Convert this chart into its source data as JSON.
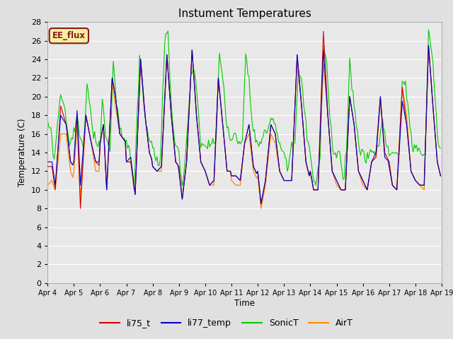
{
  "title": "Instument Temperatures",
  "ylabel": "Temperature (C)",
  "xlabel": "Time",
  "ylim": [
    0,
    28
  ],
  "fig_bg": "#e0e0e0",
  "plot_bg": "#e8e8e8",
  "grid_color": "#ffffff",
  "annotation_text": "EE_flux",
  "annotation_facecolor": "#f5f0a0",
  "annotation_edgecolor": "#8b1a1a",
  "colors": {
    "li75_t": "#dd0000",
    "li77_temp": "#0000cc",
    "SonicT": "#00cc00",
    "AirT": "#ff8800"
  },
  "legend_labels": [
    "li75_t",
    "li77_temp",
    "SonicT",
    "AirT"
  ],
  "xtick_labels": [
    "Apr 4",
    "Apr 5",
    "Apr 6",
    "Apr 7",
    "Apr 8",
    "Apr 9",
    "Apr 10",
    "Apr 11",
    "Apr 12",
    "Apr 13",
    "Apr 14",
    "Apr 15",
    "Apr 16",
    "Apr 17",
    "Apr 18",
    "Apr 19"
  ],
  "xtick_positions": [
    0,
    24,
    48,
    72,
    96,
    120,
    144,
    168,
    192,
    216,
    240,
    264,
    288,
    312,
    336,
    360
  ],
  "ytick_vals": [
    0,
    2,
    4,
    6,
    8,
    10,
    12,
    14,
    16,
    18,
    20,
    22,
    24,
    26,
    28
  ]
}
